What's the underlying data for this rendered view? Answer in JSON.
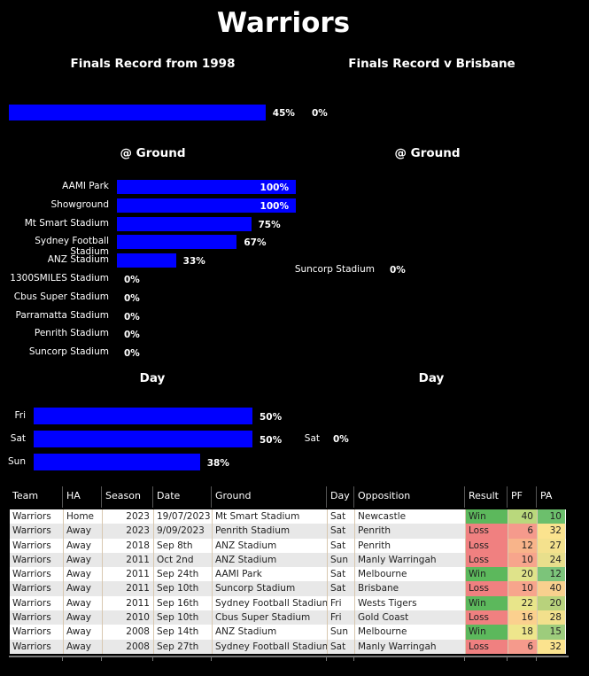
{
  "title": "Warriors",
  "left": {
    "finals_heading": "Finals Record from 1998",
    "finals_record": {
      "value_pct": 45,
      "label": "45%"
    },
    "ground_heading": "@ Ground",
    "ground": [
      {
        "name": "AAMI Park",
        "pct": 100,
        "label": "100%"
      },
      {
        "name": "Showground",
        "pct": 100,
        "label": "100%"
      },
      {
        "name": "Mt Smart Stadium",
        "pct": 75,
        "label": "75%"
      },
      {
        "name": "Sydney Football Stadium",
        "pct": 67,
        "label": "67%"
      },
      {
        "name": "ANZ Stadium",
        "pct": 33,
        "label": "33%"
      },
      {
        "name": "1300SMILES Stadium",
        "pct": 0,
        "label": "0%"
      },
      {
        "name": "Cbus Super Stadium",
        "pct": 0,
        "label": "0%"
      },
      {
        "name": "Parramatta Stadium",
        "pct": 0,
        "label": "0%"
      },
      {
        "name": "Penrith Stadium",
        "pct": 0,
        "label": "0%"
      },
      {
        "name": "Suncorp Stadium",
        "pct": 0,
        "label": "0%"
      }
    ],
    "day_heading": "Day",
    "day": [
      {
        "name": "Fri",
        "pct": 50,
        "label": "50%"
      },
      {
        "name": "Sat",
        "pct": 50,
        "label": "50%"
      },
      {
        "name": "Sun",
        "pct": 38,
        "label": "38%"
      }
    ]
  },
  "right": {
    "finals_heading": "Finals Record v Brisbane",
    "finals_record": {
      "value_pct": 0,
      "label": "0%"
    },
    "ground_heading": "@ Ground",
    "ground": [
      {
        "name": "Suncorp Stadium",
        "pct": 0,
        "label": "0%"
      }
    ],
    "day_heading": "Day",
    "day": [
      {
        "name": "Sat",
        "pct": 0,
        "label": "0%"
      }
    ]
  },
  "table": {
    "columns": [
      "Team",
      "HA",
      "Season",
      "Date",
      "Ground",
      "Day",
      "Opposition",
      "Result",
      "PF",
      "PA"
    ],
    "rows": [
      [
        "Warriors",
        "Home",
        "2023",
        "19/07/2023",
        "Mt Smart Stadium",
        "Sat",
        "Newcastle",
        "Win",
        "40",
        "10"
      ],
      [
        "Warriors",
        "Away",
        "2023",
        "9/09/2023",
        "Penrith Stadium",
        "Sat",
        "Penrith",
        "Loss",
        "6",
        "32"
      ],
      [
        "Warriors",
        "Away",
        "2018",
        "Sep 8th",
        "ANZ Stadium",
        "Sat",
        "Penrith",
        "Loss",
        "12",
        "27"
      ],
      [
        "Warriors",
        "Away",
        "2011",
        "Oct 2nd",
        "ANZ Stadium",
        "Sun",
        "Manly Warringah",
        "Loss",
        "10",
        "24"
      ],
      [
        "Warriors",
        "Away",
        "2011",
        "Sep 24th",
        "AAMI Park",
        "Sat",
        "Melbourne",
        "Win",
        "20",
        "12"
      ],
      [
        "Warriors",
        "Away",
        "2011",
        "Sep 10th",
        "Suncorp Stadium",
        "Sat",
        "Brisbane",
        "Loss",
        "10",
        "40"
      ],
      [
        "Warriors",
        "Away",
        "2011",
        "Sep 16th",
        "Sydney Football Stadium",
        "Fri",
        "Wests Tigers",
        "Win",
        "22",
        "20"
      ],
      [
        "Warriors",
        "Away",
        "2010",
        "Sep 10th",
        "Cbus Super Stadium",
        "Fri",
        "Gold Coast",
        "Loss",
        "16",
        "28"
      ],
      [
        "Warriors",
        "Away",
        "2008",
        "Sep 14th",
        "ANZ Stadium",
        "Sun",
        "Melbourne",
        "Win",
        "18",
        "15"
      ],
      [
        "Warriors",
        "Away",
        "2008",
        "Sep 27th",
        "Sydney Football Stadium",
        "Sat",
        "Manly Warringah",
        "Loss",
        "6",
        "32"
      ]
    ],
    "colors": {
      "win": "#5cb85c",
      "loss": "#f08080",
      "pf": [
        "#b9d87c",
        "#f59a8c",
        "#f8b48a",
        "#f7a58c",
        "#dfe38a",
        "#f7a58c",
        "#e8e58a",
        "#fbd08e",
        "#eee68c",
        "#f59a8c"
      ],
      "pa": [
        "#6cbf6c",
        "#fbe38e",
        "#f4e18d",
        "#e8df8c",
        "#7cc47a",
        "#f8d08e",
        "#b8d27c",
        "#f2e08c",
        "#9dcc7c",
        "#fbe38e"
      ]
    }
  }
}
